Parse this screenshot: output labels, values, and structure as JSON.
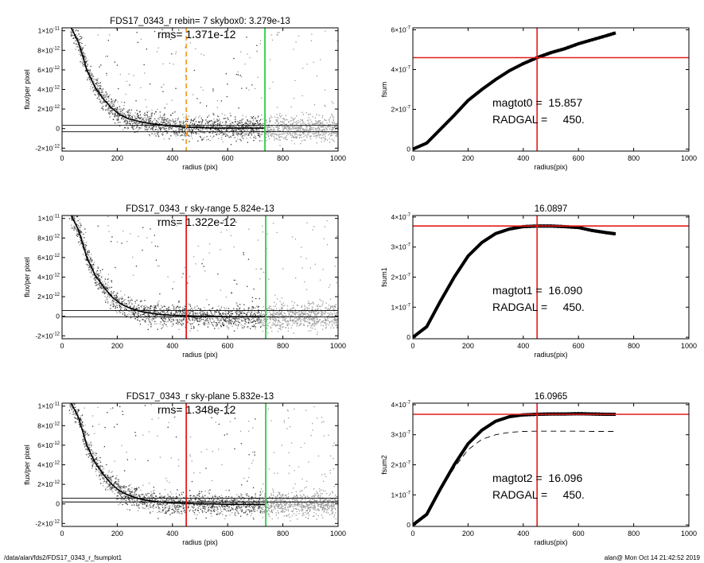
{
  "footer": {
    "left": "/data/alan/fds2/FDS17_0343_r_fsumplot1",
    "right": "alan@  Mon Oct 14 21:42:52 2019"
  },
  "colors": {
    "red": "#e41a1c",
    "green": "#2ecc40",
    "orange": "#f0a030",
    "gray": "#9a9a9a",
    "black": "#000000"
  },
  "chart_data": [
    {
      "type": "scatter",
      "title": "FDS17_0343_r rebin= 7    skybox0:  3.279e-13",
      "annotation": "rms= 1.371e-12",
      "xlabel": "radius (pix)",
      "ylabel": "flux/per pixel",
      "xlim": [
        0,
        1000
      ],
      "ylim": [
        -2.3e-12,
        1.03e-11
      ],
      "xticks": [
        0,
        200,
        400,
        600,
        800,
        1000
      ],
      "yticks": [
        {
          "value": 1e-11,
          "mant": "1×10",
          "exp": "-11"
        },
        {
          "value": 8e-12,
          "mant": "8×10",
          "exp": "-12"
        },
        {
          "value": 6e-12,
          "mant": "6×10",
          "exp": "-12"
        },
        {
          "value": 4e-12,
          "mant": "4×10",
          "exp": "-12"
        },
        {
          "value": 2e-12,
          "mant": "2×10",
          "exp": "-12"
        },
        {
          "value": 0,
          "mant": "0",
          "exp": ""
        },
        {
          "value": -2e-12,
          "mant": "-2×10",
          "exp": "-12"
        }
      ],
      "hlines": [
        3.28e-13,
        -3.2e-13
      ],
      "vlines": [
        {
          "x": 450,
          "color": "orange",
          "dashed": true
        },
        {
          "x": 735,
          "color": "green",
          "dashed": false
        }
      ],
      "profile": {
        "x": [
          30,
          60,
          90,
          120,
          150,
          180,
          210,
          240,
          270,
          300,
          350,
          400,
          450,
          500,
          550,
          600,
          650,
          700,
          735
        ],
        "y": [
          1.05e-11,
          8.8e-12,
          6e-12,
          4.2e-12,
          3e-12,
          2.1e-12,
          1.4e-12,
          1e-12,
          8e-13,
          6e-13,
          4e-13,
          2.5e-13,
          1.5e-13,
          1e-13,
          5e-14,
          5e-14,
          5e-14,
          5e-14,
          5e-14
        ]
      }
    },
    {
      "type": "line",
      "title": "",
      "annotation": [
        "magtot0 =  15.857",
        "RADGAL =     450."
      ],
      "xlabel": "radius(pix)",
      "ylabel": "fsum",
      "xlim": [
        0,
        1000
      ],
      "ylim": [
        -1e-08,
        6.1e-07
      ],
      "xticks": [
        0,
        200,
        400,
        600,
        800,
        1000
      ],
      "yticks": [
        {
          "value": 6e-07,
          "mant": "6×10",
          "exp": "-7"
        },
        {
          "value": 4e-07,
          "mant": "4×10",
          "exp": "-7"
        },
        {
          "value": 2e-07,
          "mant": "2×10",
          "exp": "-7"
        },
        {
          "value": 0,
          "mant": "0",
          "exp": ""
        }
      ],
      "crosshair": {
        "x": 450,
        "y": 4.6e-07
      },
      "series": [
        {
          "x": [
            0,
            50,
            100,
            150,
            200,
            250,
            300,
            350,
            400,
            450,
            500,
            550,
            600,
            650,
            700,
            735
          ],
          "y": [
            0,
            3e-08,
            1e-07,
            1.7e-07,
            2.45e-07,
            3e-07,
            3.5e-07,
            3.95e-07,
            4.3e-07,
            4.6e-07,
            4.85e-07,
            5.05e-07,
            5.3e-07,
            5.5e-07,
            5.7e-07,
            5.85e-07
          ]
        }
      ]
    },
    {
      "type": "scatter",
      "title": "FDS17_0343_r sky-range  5.824e-13",
      "annotation": "rms= 1.322e-12",
      "xlabel": "radius (pix)",
      "ylabel": "flux/per pixel",
      "xlim": [
        0,
        1000
      ],
      "ylim": [
        -2.3e-12,
        1.03e-11
      ],
      "xticks": [
        0,
        200,
        400,
        600,
        800,
        1000
      ],
      "yticks": [
        {
          "value": 1e-11,
          "mant": "1×10",
          "exp": "-11"
        },
        {
          "value": 8e-12,
          "mant": "8×10",
          "exp": "-12"
        },
        {
          "value": 6e-12,
          "mant": "6×10",
          "exp": "-12"
        },
        {
          "value": 4e-12,
          "mant": "4×10",
          "exp": "-12"
        },
        {
          "value": 2e-12,
          "mant": "2×10",
          "exp": "-12"
        },
        {
          "value": 0,
          "mant": "0",
          "exp": ""
        },
        {
          "value": -2e-12,
          "mant": "-2×10",
          "exp": "-12"
        }
      ],
      "hlines": [
        5.82e-13,
        -6e-14
      ],
      "vlines": [
        {
          "x": 450,
          "color": "red",
          "dashed": false
        },
        {
          "x": 738,
          "color": "green",
          "dashed": false
        }
      ],
      "profile": {
        "x": [
          30,
          60,
          90,
          120,
          150,
          180,
          210,
          240,
          270,
          300,
          350,
          400,
          450,
          500,
          550,
          600,
          650,
          700,
          735
        ],
        "y": [
          1.05e-11,
          8.8e-12,
          6e-12,
          4.2e-12,
          3e-12,
          2e-12,
          1.3e-12,
          9e-13,
          6e-13,
          4e-13,
          2e-13,
          1e-13,
          5e-14,
          0.0,
          0.0,
          -5e-14,
          -5e-14,
          -5e-14,
          -5e-14
        ]
      }
    },
    {
      "type": "line",
      "title": "16.0897",
      "annotation": [
        "magtot1 =  16.090",
        "RADGAL =     450."
      ],
      "xlabel": "radius(pix)",
      "ylabel": "fsum1",
      "xlim": [
        0,
        1000
      ],
      "ylim": [
        -5e-09,
        4.05e-07
      ],
      "xticks": [
        0,
        200,
        400,
        600,
        800,
        1000
      ],
      "yticks": [
        {
          "value": 4e-07,
          "mant": "4×10",
          "exp": "-7"
        },
        {
          "value": 3e-07,
          "mant": "3×10",
          "exp": "-7"
        },
        {
          "value": 2e-07,
          "mant": "2×10",
          "exp": "-7"
        },
        {
          "value": 1e-07,
          "mant": "1×10",
          "exp": "-7"
        },
        {
          "value": 0,
          "mant": "0",
          "exp": ""
        }
      ],
      "crosshair": {
        "x": 450,
        "y": 3.7e-07
      },
      "series": [
        {
          "x": [
            0,
            50,
            100,
            150,
            200,
            250,
            300,
            350,
            400,
            450,
            500,
            550,
            600,
            650,
            700,
            735
          ],
          "y": [
            0,
            3.5e-08,
            1.2e-07,
            2e-07,
            2.7e-07,
            3.15e-07,
            3.45e-07,
            3.6e-07,
            3.68e-07,
            3.7e-07,
            3.7e-07,
            3.68e-07,
            3.65e-07,
            3.55e-07,
            3.48e-07,
            3.44e-07
          ]
        }
      ]
    },
    {
      "type": "scatter",
      "title": "FDS17_0343_r sky-plane  5.832e-13",
      "annotation": "rms= 1.348e-12",
      "xlabel": "radius (pix)",
      "ylabel": "flux/per pixel",
      "xlim": [
        0,
        1000
      ],
      "ylim": [
        -2.3e-12,
        1.03e-11
      ],
      "xticks": [
        0,
        200,
        400,
        600,
        800,
        1000
      ],
      "yticks": [
        {
          "value": 1e-11,
          "mant": "1×10",
          "exp": "-11"
        },
        {
          "value": 8e-12,
          "mant": "8×10",
          "exp": "-12"
        },
        {
          "value": 6e-12,
          "mant": "6×10",
          "exp": "-12"
        },
        {
          "value": 4e-12,
          "mant": "4×10",
          "exp": "-12"
        },
        {
          "value": 2e-12,
          "mant": "2×10",
          "exp": "-12"
        },
        {
          "value": 0,
          "mant": "0",
          "exp": ""
        },
        {
          "value": -2e-12,
          "mant": "-2×10",
          "exp": "-12"
        }
      ],
      "hlines": [
        5.83e-13,
        2e-13
      ],
      "vlines": [
        {
          "x": 450,
          "color": "red",
          "dashed": false
        },
        {
          "x": 738,
          "color": "green",
          "dashed": false
        }
      ],
      "profile": {
        "x": [
          30,
          60,
          90,
          120,
          150,
          180,
          210,
          240,
          270,
          300,
          350,
          400,
          450,
          500,
          550,
          600,
          650,
          700,
          735
        ],
        "y": [
          1.05e-11,
          8.8e-12,
          6e-12,
          4.2e-12,
          3e-12,
          2e-12,
          1.3e-12,
          9e-13,
          6e-13,
          4e-13,
          2e-13,
          1e-13,
          5e-14,
          0.0,
          0.0,
          -5e-14,
          -5e-14,
          -5e-14,
          -5e-14
        ]
      }
    },
    {
      "type": "line",
      "title": "16.0965",
      "annotation": [
        "magtot2 =  16.096",
        "RADGAL =     450."
      ],
      "xlabel": "radius(pix)",
      "ylabel": "fsum2",
      "xlim": [
        0,
        1000
      ],
      "ylim": [
        -5e-09,
        4.05e-07
      ],
      "xticks": [
        0,
        200,
        400,
        600,
        800,
        1000
      ],
      "yticks": [
        {
          "value": 4e-07,
          "mant": "4×10",
          "exp": "-7"
        },
        {
          "value": 3e-07,
          "mant": "3×10",
          "exp": "-7"
        },
        {
          "value": 2e-07,
          "mant": "2×10",
          "exp": "-7"
        },
        {
          "value": 1e-07,
          "mant": "1×10",
          "exp": "-7"
        },
        {
          "value": 0,
          "mant": "0",
          "exp": ""
        }
      ],
      "crosshair": {
        "x": 450,
        "y": 3.68e-07
      },
      "series": [
        {
          "x": [
            0,
            50,
            100,
            150,
            200,
            250,
            300,
            350,
            400,
            450,
            500,
            550,
            600,
            650,
            700,
            735
          ],
          "y": [
            0,
            3.5e-08,
            1.2e-07,
            2e-07,
            2.7e-07,
            3.15e-07,
            3.45e-07,
            3.6e-07,
            3.66e-07,
            3.68e-07,
            3.69e-07,
            3.69e-07,
            3.7e-07,
            3.69e-07,
            3.68e-07,
            3.68e-07
          ]
        },
        {
          "x": [
            0,
            50,
            100,
            150,
            200,
            250,
            300,
            350,
            400,
            450,
            500,
            550,
            600,
            650,
            700,
            735
          ],
          "y": [
            0,
            3.5e-08,
            1.15e-07,
            1.9e-07,
            2.5e-07,
            2.85e-07,
            3e-07,
            3.08e-07,
            3.11e-07,
            3.12e-07,
            3.12e-07,
            3.12e-07,
            3.12e-07,
            3.11e-07,
            3.11e-07,
            3.11e-07
          ],
          "dashed": true
        }
      ]
    }
  ]
}
